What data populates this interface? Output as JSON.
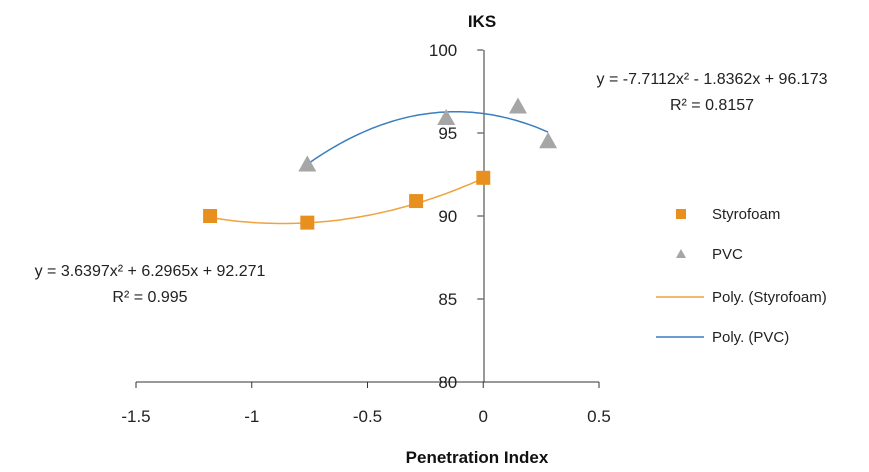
{
  "chart_data": {
    "type": "scatter",
    "title": "IKS",
    "xlabel": "Penetration Index",
    "ylabel": "",
    "xlim": [
      -1.5,
      0.5
    ],
    "ylim": [
      80,
      100
    ],
    "x_ticks": [
      "-1.5",
      "-1",
      "-0.5",
      "0",
      "0.5"
    ],
    "y_ticks": [
      "80",
      "85",
      "90",
      "95",
      "100"
    ],
    "series": [
      {
        "name": "Styrofoam",
        "marker": "square",
        "color": "#E8901F",
        "points": [
          [
            -1.18,
            90.0
          ],
          [
            -0.76,
            89.6
          ],
          [
            -0.29,
            90.9
          ],
          [
            0.0,
            92.3
          ]
        ],
        "trend": {
          "name": "Poly. (Styrofoam)",
          "color": "#F0A23C",
          "coefficients": [
            3.6397,
            6.2965,
            92.271
          ],
          "x_range": [
            -1.18,
            0.0
          ],
          "equation": "y = 3.6397x² + 6.2965x + 92.271",
          "r2": "R² = 0.995"
        }
      },
      {
        "name": "PVC",
        "marker": "triangle",
        "color": "#A6A6A6",
        "points": [
          [
            -0.76,
            93.1
          ],
          [
            -0.16,
            95.9
          ],
          [
            0.15,
            96.6
          ],
          [
            0.28,
            94.5
          ]
        ],
        "trend": {
          "name": "Poly. (PVC)",
          "color": "#3A7EC0",
          "coefficients": [
            -7.7112,
            -1.8362,
            96.173
          ],
          "x_range": [
            -0.76,
            0.28
          ],
          "equation": "y = -7.7112x² - 1.8362x + 96.173",
          "r2": "R² = 0.8157"
        }
      }
    ],
    "legend": {
      "placement": "right",
      "entries": [
        "Styrofoam",
        "PVC",
        "Poly. (Styrofoam)",
        "Poly. (PVC)"
      ]
    }
  }
}
